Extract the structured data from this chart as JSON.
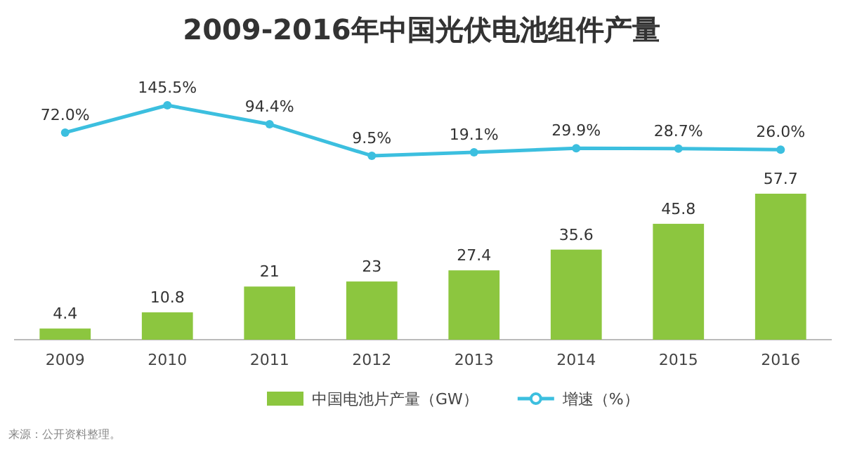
{
  "chart_data": [
    {
      "type": "line",
      "title": "2009-2016年中国光伏电池组件产量",
      "categories": [
        null,
        null,
        null,
        null,
        null,
        null,
        null,
        null
      ],
      "tick_labels": false,
      "series": [
        {
          "name": "增速（%）",
          "color": "#3cbfdf",
          "values": [
            72.0,
            145.5,
            94.4,
            9.5,
            19.1,
            29.9,
            28.7,
            26.0
          ],
          "value_labels": [
            "72.0%",
            "145.5%",
            "94.4%",
            "9.5%",
            "19.1%",
            "29.9%",
            "28.7%",
            "26.0%"
          ]
        }
      ],
      "marker": "circle",
      "legend": "bottom"
    },
    {
      "type": "bar",
      "categories": [
        "2009",
        "2010",
        "2011",
        "2012",
        "2013",
        "2014",
        "2015",
        "2016"
      ],
      "series": [
        {
          "name": "中国电池片产量（GW）",
          "color": "#8cc63f",
          "values": [
            4.4,
            10.8,
            21,
            23,
            27.4,
            35.6,
            45.8,
            57.7
          ]
        }
      ],
      "data_labels": true,
      "legend": "bottom",
      "annotations": [
        "来源：公开资料整理。"
      ]
    }
  ]
}
